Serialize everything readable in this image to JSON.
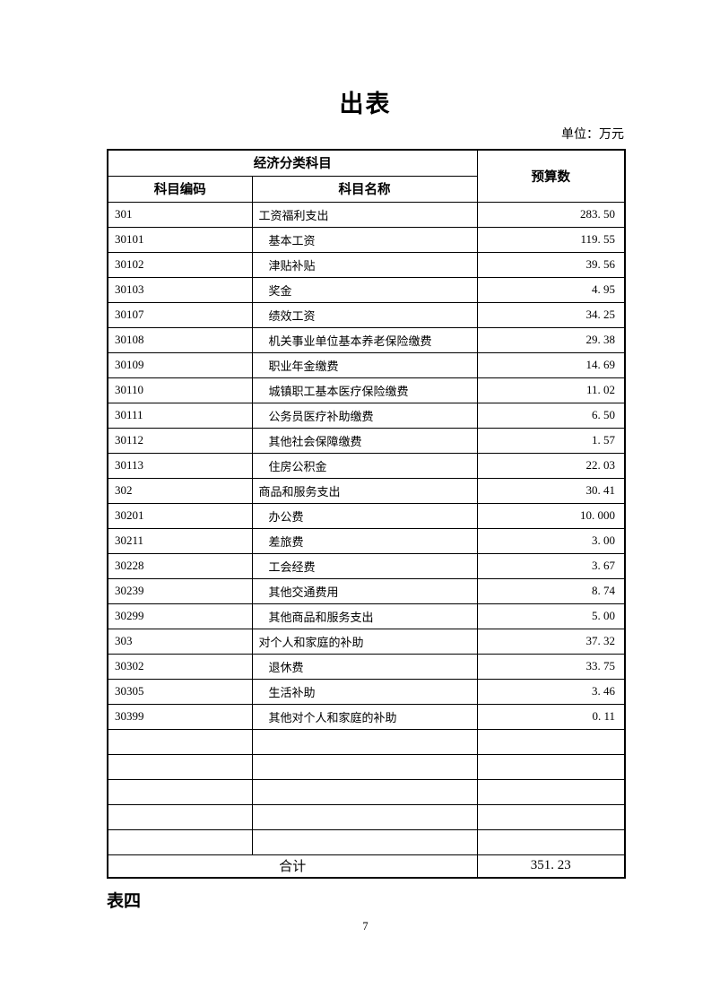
{
  "page": {
    "title": "出表",
    "unit_label": "单位：万元",
    "footer_label": "表四",
    "page_number": "7"
  },
  "table": {
    "header": {
      "group": "经济分类科目",
      "code": "科目编码",
      "name": "科目名称",
      "budget": "预算数"
    },
    "rows": [
      {
        "code": "301",
        "name": "工资福利支出",
        "value": "283. 50",
        "level": 1
      },
      {
        "code": "30101",
        "name": "基本工资",
        "value": "119. 55",
        "level": 2
      },
      {
        "code": "30102",
        "name": "津贴补贴",
        "value": "39. 56",
        "level": 2
      },
      {
        "code": "30103",
        "name": "奖金",
        "value": "4. 95",
        "level": 2
      },
      {
        "code": "30107",
        "name": "绩效工资",
        "value": "34. 25",
        "level": 2
      },
      {
        "code": "30108",
        "name": "机关事业单位基本养老保险缴费",
        "value": "29. 38",
        "level": 2
      },
      {
        "code": "30109",
        "name": "职业年金缴费",
        "value": "14. 69",
        "level": 2
      },
      {
        "code": "30110",
        "name": "城镇职工基本医疗保险缴费",
        "value": "11. 02",
        "level": 2
      },
      {
        "code": "30111",
        "name": "公务员医疗补助缴费",
        "value": "6. 50",
        "level": 2
      },
      {
        "code": "30112",
        "name": "其他社会保障缴费",
        "value": "1. 57",
        "level": 2
      },
      {
        "code": "30113",
        "name": "住房公积金",
        "value": "22. 03",
        "level": 2
      },
      {
        "code": "302",
        "name": "商品和服务支出",
        "value": "30. 41",
        "level": 1
      },
      {
        "code": "30201",
        "name": "办公费",
        "value": "10. 000",
        "level": 2
      },
      {
        "code": "30211",
        "name": "差旅费",
        "value": "3. 00",
        "level": 2
      },
      {
        "code": "30228",
        "name": "工会经费",
        "value": "3. 67",
        "level": 2
      },
      {
        "code": "30239",
        "name": "其他交通费用",
        "value": "8. 74",
        "level": 2
      },
      {
        "code": "30299",
        "name": "其他商品和服务支出",
        "value": "5. 00",
        "level": 2
      },
      {
        "code": "303",
        "name": "对个人和家庭的补助",
        "value": "37. 32",
        "level": 1
      },
      {
        "code": "30302",
        "name": "退休费",
        "value": "33. 75",
        "level": 2
      },
      {
        "code": "30305",
        "name": "生活补助",
        "value": "3. 46",
        "level": 2
      },
      {
        "code": "30399",
        "name": "其他对个人和家庭的补助",
        "value": "0. 11",
        "level": 2
      }
    ],
    "empty_row_count": 5,
    "total": {
      "label": "合计",
      "value": "351. 23"
    }
  }
}
